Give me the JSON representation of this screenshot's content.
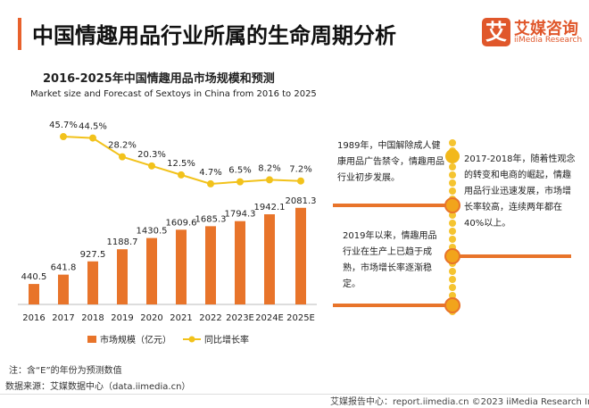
{
  "header": {
    "title": "中国情趣用品行业所属的生命周期分析",
    "logo_mark": "艾",
    "logo_cn": "艾媒咨询",
    "logo_en": "iiMedia Research"
  },
  "chart_data": {
    "type": "bar+line",
    "title": "2016-2025年中国情趣用品市场规模和预测",
    "subtitle": "Market size and Forecast of Sextoys in China from 2016 to 2025",
    "categories": [
      "2016",
      "2017",
      "2018",
      "2019",
      "2020",
      "2021",
      "2022",
      "2023E",
      "2024E",
      "2025E"
    ],
    "series": [
      {
        "name": "市场规模（亿元）",
        "type": "bar",
        "color": "#e8742a",
        "values": [
          440.5,
          641.8,
          927.5,
          1188.7,
          1430.5,
          1609.6,
          1685.3,
          1794.3,
          1942.1,
          2081.3
        ],
        "labels": [
          "440.5",
          "641.8",
          "927.5",
          "1188.7",
          "1430.5",
          "1609.6",
          "1685.3",
          "1794.3",
          "1942.1",
          "2081.3"
        ]
      },
      {
        "name": "同比增长率",
        "type": "line",
        "color": "#f2c21b",
        "values": [
          null,
          45.7,
          44.5,
          28.2,
          20.3,
          12.5,
          4.7,
          6.5,
          8.2,
          7.2
        ],
        "labels": [
          "",
          "45.7%",
          "44.5%",
          "28.2%",
          "20.3%",
          "12.5%",
          "4.7%",
          "6.5%",
          "8.2%",
          "7.2%"
        ]
      }
    ],
    "legend_position": "bottom"
  },
  "timeline": [
    {
      "text": "1989年，中国解除成人健康用品广告禁令，情趣用品行业初步发展。"
    },
    {
      "text": "2017-2018年，随着性观念的转变和电商的崛起，情趣用品行业迅速发展，市场增长率较高，连续两年都在40%以上。"
    },
    {
      "text": "2019年以来，情趣用品行业在生产上已趋于成熟，市场增长率逐渐稳定。"
    }
  ],
  "colors": {
    "accent": "#e8612c",
    "bar": "#e8742a",
    "line": "#f2c21b"
  },
  "footer": {
    "note": "注：含“E”的年份为预测数值",
    "source": "数据来源：艾媒数据中心（data.iimedia.cn）",
    "credit": "艾媒报告中心：report.iimedia.cn ©2023  iiMedia Research  Inc"
  }
}
